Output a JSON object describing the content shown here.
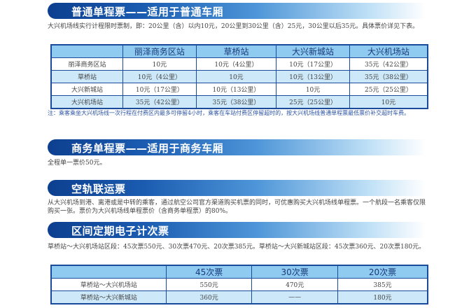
{
  "sections": [
    {
      "title": "普通单程票——适用于普通车厢",
      "intro": "大兴机场线实行计程限时票制，即：20公里（含）以内10元，20公里到30公里（含）25元，30公里以后35元。具体票价详见下表。",
      "note": "注：乘客乘坐大兴机场线一次行程在付费区内最多可停留4小时，乘客在车站付费区停留超时的，按大兴机场线普通单程票最低票价补交超时车费。"
    },
    {
      "title": "商务单程票——适用于商务车厢",
      "text": "全程单一票价50元。"
    },
    {
      "title": "空轨联运票",
      "text": "从大兴机场到港、离港或是中转的乘客，通过航空公司官方渠道购买机票的同时，可优惠购买大兴机场线单程票。一个航段一名乘客仅限购买一张。票价为大兴机场线单程票价（含商务单程票）的80%。"
    },
    {
      "title": "区间定期电子计次票",
      "text": "草桥站～大兴机场站区段：45次票550元、30次票470元、20次票385元。草桥站～大兴新城站区段：45次票360元、20次票180元。"
    }
  ],
  "fare_table": {
    "headers": [
      "",
      "丽泽商务区站",
      "草桥站",
      "大兴新城站",
      "大兴机场站"
    ],
    "rows": [
      [
        "丽泽商务区站",
        "10元",
        "10元（4公里）",
        "10元（17公里）",
        "35元（42公里）"
      ],
      [
        "草桥站",
        "10元（4公里）",
        "10元",
        "10元（13公里）",
        "35元（38公里）"
      ],
      [
        "大兴新城站",
        "10元（17公里）",
        "10元（13公里）",
        "10元",
        "25元（25公里）"
      ],
      [
        "大兴机场站",
        "35元（42公里）",
        "35元（38公里）",
        "25元（25公里）",
        "10元"
      ]
    ]
  },
  "pass_table": {
    "headers": [
      "",
      "45次票",
      "30次票",
      "20次票"
    ],
    "rows": [
      [
        "草桥站～大兴机场站",
        "550元",
        "470元",
        "385元"
      ],
      [
        "草桥站～大兴新城站",
        "360元",
        "——",
        "180元"
      ]
    ]
  }
}
